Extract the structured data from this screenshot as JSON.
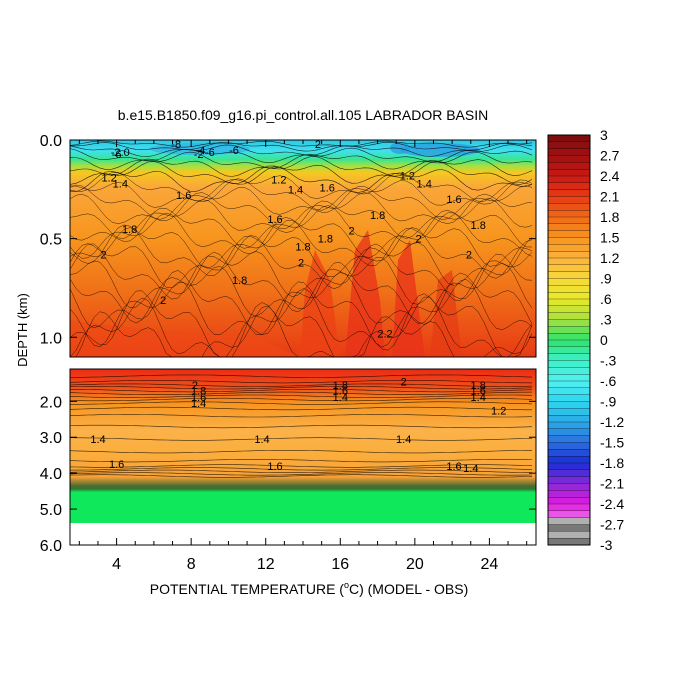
{
  "chart_data": {
    "type": "heatmap",
    "title": "b.e15.B1850.f09_g16.pi_control.all.105 LABRADOR BASIN",
    "xlabel_pre": "POTENTIAL TEMPERATURE (",
    "xlabel_sup": "o",
    "xlabel_post": "C) (MODEL - OBS)",
    "ylabel": "DEPTH (km)",
    "x_range": [
      1.5,
      26.5
    ],
    "x_ticks": [
      4,
      8,
      12,
      16,
      20,
      24
    ],
    "x_tick_labels": [
      "4",
      "8",
      "12",
      "16",
      "20",
      "24"
    ],
    "upper_panel": {
      "y_range": [
        0.0,
        1.1
      ],
      "y_ticks": [
        0.0,
        0.5,
        1.0
      ],
      "y_tick_labels": [
        "0.0",
        "0.5",
        "1.0"
      ]
    },
    "lower_panel": {
      "y_range": [
        1.1,
        6.0
      ],
      "y_ticks": [
        2.0,
        3.0,
        4.0,
        5.0,
        6.0
      ],
      "y_tick_labels": [
        "2.0",
        "3.0",
        "4.0",
        "5.0",
        "6.0"
      ]
    },
    "colorbar": {
      "min": -3,
      "max": 3,
      "tick_values": [
        3,
        2.7,
        2.4,
        2.1,
        1.8,
        1.5,
        1.2,
        0.9,
        0.6,
        0.3,
        0,
        -0.3,
        -0.6,
        -0.9,
        -1.2,
        -1.5,
        -1.8,
        -2.1,
        -2.4,
        -2.7,
        -3
      ],
      "tick_labels": [
        "3",
        "2.7",
        "2.4",
        "2.1",
        "1.8",
        "1.5",
        "1.2",
        ".9",
        ".6",
        ".3",
        "0",
        "-.3",
        "-.6",
        "-.9",
        "-1.2",
        "-1.5",
        "-1.8",
        "-2.1",
        "-2.4",
        "-2.7",
        "-3"
      ]
    },
    "contour_labels": [
      {
        "text": "2",
        "x": 14.8,
        "y": 0.02
      },
      {
        "text": "-8",
        "x": 7.2,
        "y": 0.02
      },
      {
        "text": "-4",
        "x": 8.5,
        "y": 0.05
      },
      {
        "text": "-6",
        "x": 10.3,
        "y": 0.05
      },
      {
        "text": "-6",
        "x": 9.0,
        "y": 0.06
      },
      {
        "text": "-2",
        "x": 8.4,
        "y": 0.07
      },
      {
        "text": "-6",
        "x": 4.0,
        "y": 0.07
      },
      {
        "text": "-2.0",
        "x": 4.2,
        "y": 0.06
      },
      {
        "text": "1.2",
        "x": 3.6,
        "y": 0.19
      },
      {
        "text": "1.4",
        "x": 4.2,
        "y": 0.22
      },
      {
        "text": "1.2",
        "x": 12.7,
        "y": 0.2
      },
      {
        "text": "1.4",
        "x": 13.6,
        "y": 0.25
      },
      {
        "text": "1.6",
        "x": 15.3,
        "y": 0.24
      },
      {
        "text": "1.2",
        "x": 19.6,
        "y": 0.18
      },
      {
        "text": "1.4",
        "x": 20.5,
        "y": 0.22
      },
      {
        "text": "1.6",
        "x": 7.6,
        "y": 0.28
      },
      {
        "text": "1.6",
        "x": 22.1,
        "y": 0.3
      },
      {
        "text": "1.6",
        "x": 12.5,
        "y": 0.4
      },
      {
        "text": "1.8",
        "x": 4.7,
        "y": 0.45
      },
      {
        "text": "2",
        "x": 16.6,
        "y": 0.46
      },
      {
        "text": "1.8",
        "x": 18.0,
        "y": 0.38
      },
      {
        "text": "2",
        "x": 20.2,
        "y": 0.5
      },
      {
        "text": "1.8",
        "x": 23.4,
        "y": 0.43
      },
      {
        "text": "1.8",
        "x": 15.2,
        "y": 0.5
      },
      {
        "text": "2",
        "x": 3.3,
        "y": 0.58
      },
      {
        "text": "2",
        "x": 22.9,
        "y": 0.58
      },
      {
        "text": "1.8",
        "x": 14.0,
        "y": 0.54
      },
      {
        "text": "1.8",
        "x": 10.6,
        "y": 0.71
      },
      {
        "text": "2",
        "x": 13.9,
        "y": 0.62
      },
      {
        "text": "2",
        "x": 6.5,
        "y": 0.81
      },
      {
        "text": "2.2",
        "x": 18.4,
        "y": 0.98
      },
      {
        "text": "2",
        "x": 19.4,
        "y": 1.45
      },
      {
        "text": "2",
        "x": 8.2,
        "y": 1.55
      },
      {
        "text": "1.8",
        "x": 8.4,
        "y": 1.7
      },
      {
        "text": "1.6",
        "x": 8.4,
        "y": 1.88
      },
      {
        "text": "1.4",
        "x": 8.4,
        "y": 2.05
      },
      {
        "text": "1.8",
        "x": 16.0,
        "y": 1.55
      },
      {
        "text": "1.6",
        "x": 16.0,
        "y": 1.7
      },
      {
        "text": "1.4",
        "x": 16.0,
        "y": 1.88
      },
      {
        "text": "1.8",
        "x": 23.4,
        "y": 1.55
      },
      {
        "text": "1.6",
        "x": 23.4,
        "y": 1.7
      },
      {
        "text": "1.4",
        "x": 23.4,
        "y": 1.88
      },
      {
        "text": "1.2",
        "x": 24.5,
        "y": 2.25
      },
      {
        "text": "1.4",
        "x": 3.0,
        "y": 3.05
      },
      {
        "text": "1.4",
        "x": 11.8,
        "y": 3.05
      },
      {
        "text": "1.4",
        "x": 19.4,
        "y": 3.05
      },
      {
        "text": "1.6",
        "x": 4.0,
        "y": 3.75
      },
      {
        "text": "1.6",
        "x": 12.5,
        "y": 3.8
      },
      {
        "text": "1.6",
        "x": 22.1,
        "y": 3.8
      },
      {
        "text": "1.4",
        "x": 23.0,
        "y": 3.85
      }
    ]
  }
}
